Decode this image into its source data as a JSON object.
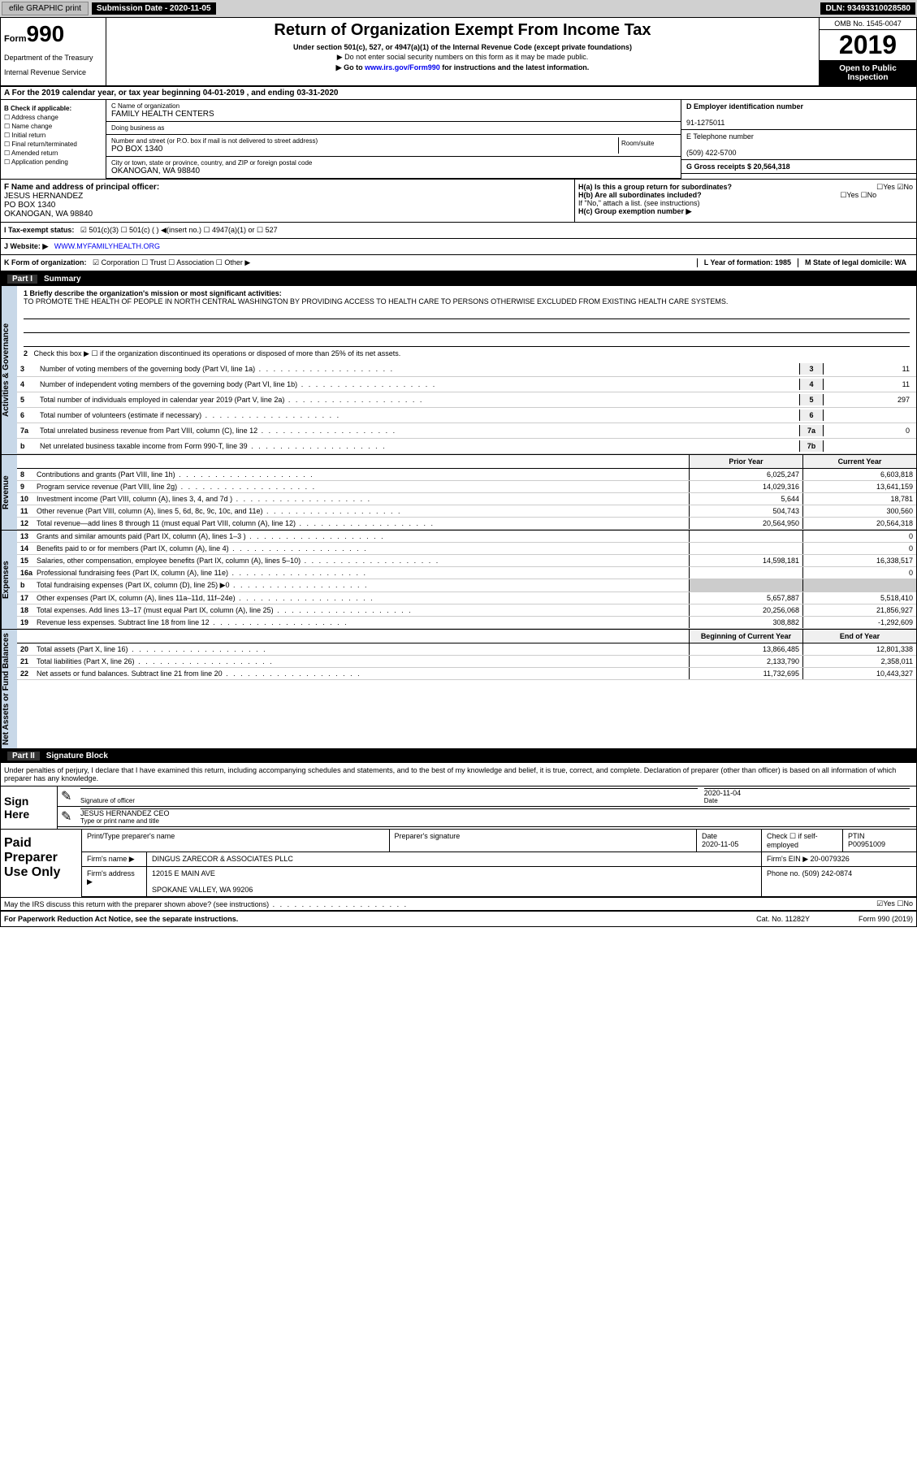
{
  "topBar": {
    "efile": "efile GRAPHIC print",
    "subDateLabel": "Submission Date - 2020-11-05",
    "dln": "DLN: 93493310028580"
  },
  "header": {
    "formLabel": "Form",
    "formNum": "990",
    "dept": "Department of the Treasury",
    "irs": "Internal Revenue Service",
    "title": "Return of Organization Exempt From Income Tax",
    "sub1": "Under section 501(c), 527, or 4947(a)(1) of the Internal Revenue Code (except private foundations)",
    "sub2": "▶ Do not enter social security numbers on this form as it may be made public.",
    "sub3pre": "▶ Go to ",
    "sub3link": "www.irs.gov/Form990",
    "sub3post": " for instructions and the latest information.",
    "omb": "OMB No. 1545-0047",
    "year": "2019",
    "inspect1": "Open to Public",
    "inspect2": "Inspection"
  },
  "rowA": "A For the 2019 calendar year, or tax year beginning 04-01-2019 , and ending 03-31-2020",
  "sectionB": {
    "title": "B Check if applicable:",
    "opts": [
      "☐ Address change",
      "☐ Name change",
      "☐ Initial return",
      "☐ Final return/terminated",
      "☐ Amended return",
      "☐ Application pending"
    ]
  },
  "sectionC": {
    "nameLbl": "C Name of organization",
    "name": "FAMILY HEALTH CENTERS",
    "dbaLbl": "Doing business as",
    "dba": "",
    "addrLbl": "Number and street (or P.O. box if mail is not delivered to street address)",
    "addr": "PO BOX 1340",
    "roomLbl": "Room/suite",
    "cityLbl": "City or town, state or province, country, and ZIP or foreign postal code",
    "city": "OKANOGAN, WA  98840"
  },
  "sectionD": {
    "einLbl": "D Employer identification number",
    "ein": "91-1275011",
    "phoneLbl": "E Telephone number",
    "phone": "(509) 422-5700",
    "grossLbl": "G Gross receipts $ 20,564,318"
  },
  "sectionF": {
    "lbl": "F  Name and address of principal officer:",
    "name": "JESUS HERNANDEZ",
    "addr": "PO BOX 1340",
    "city": "OKANOGAN, WA  98840"
  },
  "sectionH": {
    "ha": "H(a)  Is this a group return for subordinates?",
    "haAns": "☐Yes ☑No",
    "hb": "H(b)  Are all subordinates included?",
    "hbAns": "☐Yes ☐No",
    "hbNote": "If \"No,\" attach a list. (see instructions)",
    "hc": "H(c)  Group exemption number ▶"
  },
  "rowI": {
    "lbl": "I  Tax-exempt status:",
    "opts": "☑ 501(c)(3)   ☐ 501(c) ( ) ◀(insert no.)   ☐ 4947(a)(1) or   ☐ 527"
  },
  "rowJ": {
    "lbl": "J  Website: ▶",
    "val": "WWW.MYFAMILYHEALTH.ORG"
  },
  "rowK": {
    "lbl": "K Form of organization:",
    "opts": "☑ Corporation ☐ Trust ☐ Association ☐ Other ▶",
    "lLbl": "L Year of formation: 1985",
    "mLbl": "M State of legal domicile: WA"
  },
  "part1": {
    "num": "Part I",
    "title": "Summary"
  },
  "activities": {
    "label": "Activities & Governance",
    "l1": "1  Briefly describe the organization's mission or most significant activities:",
    "mission": "TO PROMOTE THE HEALTH OF PEOPLE IN NORTH CENTRAL WASHINGTON BY PROVIDING ACCESS TO HEALTH CARE TO PERSONS OTHERWISE EXCLUDED FROM EXISTING HEALTH CARE SYSTEMS.",
    "l2": "Check this box ▶ ☐  if the organization discontinued its operations or disposed of more than 25% of its net assets.",
    "rows": [
      {
        "n": "3",
        "d": "Number of voting members of the governing body (Part VI, line 1a)",
        "b": "3",
        "v": "11"
      },
      {
        "n": "4",
        "d": "Number of independent voting members of the governing body (Part VI, line 1b)",
        "b": "4",
        "v": "11"
      },
      {
        "n": "5",
        "d": "Total number of individuals employed in calendar year 2019 (Part V, line 2a)",
        "b": "5",
        "v": "297"
      },
      {
        "n": "6",
        "d": "Total number of volunteers (estimate if necessary)",
        "b": "6",
        "v": ""
      },
      {
        "n": "7a",
        "d": "Total unrelated business revenue from Part VIII, column (C), line 12",
        "b": "7a",
        "v": "0"
      },
      {
        "n": "b",
        "d": "Net unrelated business taxable income from Form 990-T, line 39",
        "b": "7b",
        "v": ""
      }
    ]
  },
  "colHeaders": {
    "py": "Prior Year",
    "cy": "Current Year"
  },
  "revenue": {
    "label": "Revenue",
    "rows": [
      {
        "n": "8",
        "d": "Contributions and grants (Part VIII, line 1h)",
        "py": "6,025,247",
        "cy": "6,603,818"
      },
      {
        "n": "9",
        "d": "Program service revenue (Part VIII, line 2g)",
        "py": "14,029,316",
        "cy": "13,641,159"
      },
      {
        "n": "10",
        "d": "Investment income (Part VIII, column (A), lines 3, 4, and 7d )",
        "py": "5,644",
        "cy": "18,781"
      },
      {
        "n": "11",
        "d": "Other revenue (Part VIII, column (A), lines 5, 6d, 8c, 9c, 10c, and 11e)",
        "py": "504,743",
        "cy": "300,560"
      },
      {
        "n": "12",
        "d": "Total revenue—add lines 8 through 11 (must equal Part VIII, column (A), line 12)",
        "py": "20,564,950",
        "cy": "20,564,318"
      }
    ]
  },
  "expenses": {
    "label": "Expenses",
    "rows": [
      {
        "n": "13",
        "d": "Grants and similar amounts paid (Part IX, column (A), lines 1–3 )",
        "py": "",
        "cy": "0"
      },
      {
        "n": "14",
        "d": "Benefits paid to or for members (Part IX, column (A), line 4)",
        "py": "",
        "cy": "0"
      },
      {
        "n": "15",
        "d": "Salaries, other compensation, employee benefits (Part IX, column (A), lines 5–10)",
        "py": "14,598,181",
        "cy": "16,338,517"
      },
      {
        "n": "16a",
        "d": "Professional fundraising fees (Part IX, column (A), line 11e)",
        "py": "",
        "cy": "0"
      },
      {
        "n": "b",
        "d": "Total fundraising expenses (Part IX, column (D), line 25) ▶0",
        "py": "",
        "cy": "",
        "shaded": true
      },
      {
        "n": "17",
        "d": "Other expenses (Part IX, column (A), lines 11a–11d, 11f–24e)",
        "py": "5,657,887",
        "cy": "5,518,410"
      },
      {
        "n": "18",
        "d": "Total expenses. Add lines 13–17 (must equal Part IX, column (A), line 25)",
        "py": "20,256,068",
        "cy": "21,856,927"
      },
      {
        "n": "19",
        "d": "Revenue less expenses. Subtract line 18 from line 12",
        "py": "308,882",
        "cy": "-1,292,609"
      }
    ]
  },
  "netHeaders": {
    "py": "Beginning of Current Year",
    "cy": "End of Year"
  },
  "netassets": {
    "label": "Net Assets or Fund Balances",
    "rows": [
      {
        "n": "20",
        "d": "Total assets (Part X, line 16)",
        "py": "13,866,485",
        "cy": "12,801,338"
      },
      {
        "n": "21",
        "d": "Total liabilities (Part X, line 26)",
        "py": "2,133,790",
        "cy": "2,358,011"
      },
      {
        "n": "22",
        "d": "Net assets or fund balances. Subtract line 21 from line 20",
        "py": "11,732,695",
        "cy": "10,443,327"
      }
    ]
  },
  "part2": {
    "num": "Part II",
    "title": "Signature Block"
  },
  "perjury": "Under penalties of perjury, I declare that I have examined this return, including accompanying schedules and statements, and to the best of my knowledge and belief, it is true, correct, and complete. Declaration of preparer (other than officer) is based on all information of which preparer has any knowledge.",
  "sign": {
    "label": "Sign Here",
    "sigLbl": "Signature of officer",
    "date": "2020-11-04",
    "dateLbl": "Date",
    "name": "JESUS HERNANDEZ  CEO",
    "nameLbl": "Type or print name and title"
  },
  "paid": {
    "label": "Paid Preparer Use Only",
    "r1": {
      "c1": "Print/Type preparer's name",
      "c2": "Preparer's signature",
      "c3l": "Date",
      "c3v": "2020-11-05",
      "c4": "Check ☐  if self-employed",
      "c5l": "PTIN",
      "c5v": "P00951009"
    },
    "r2": {
      "lbl": "Firm's name    ▶",
      "val": "DINGUS ZARECOR & ASSOCIATES PLLC",
      "einLbl": "Firm's EIN ▶",
      "ein": "20-0079326"
    },
    "r3": {
      "lbl": "Firm's address ▶",
      "val1": "12015 E MAIN AVE",
      "val2": "SPOKANE VALLEY, WA  99206",
      "phLbl": "Phone no.",
      "ph": "(509) 242-0874"
    }
  },
  "discuss": {
    "q": "May the IRS discuss this return with the preparer shown above? (see instructions)",
    "a": "☑Yes  ☐No"
  },
  "footer": {
    "left": "For Paperwork Reduction Act Notice, see the separate instructions.",
    "mid": "Cat. No. 11282Y",
    "right": "Form 990 (2019)"
  }
}
